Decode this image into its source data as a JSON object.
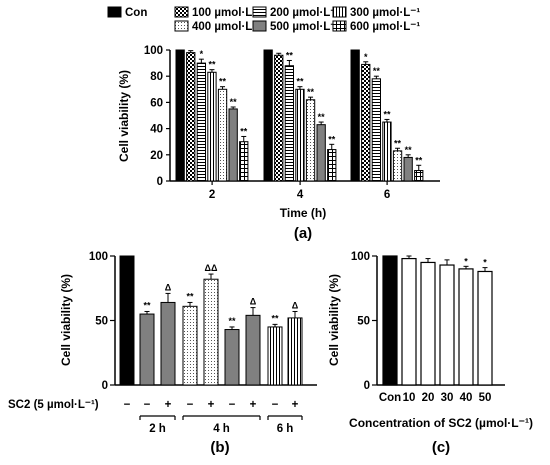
{
  "chart_data": [
    {
      "panel_label": "(a)",
      "type": "bar",
      "xlabel": "Time (h)",
      "ylabel": "Cell viability (%)",
      "ylim": [
        0,
        100
      ],
      "yticks": [
        0,
        20,
        40,
        60,
        80,
        100
      ],
      "categories": [
        "2",
        "4",
        "6"
      ],
      "legend_position": "top",
      "series": [
        {
          "name": "Con",
          "pattern": "solid-black",
          "values": [
            100,
            100,
            100
          ],
          "errors": [
            0,
            0,
            0
          ],
          "sig": [
            "",
            "",
            ""
          ]
        },
        {
          "name": "100 µmol·L⁻¹",
          "pattern": "checker",
          "values": [
            98,
            96,
            89
          ],
          "errors": [
            1.5,
            1.5,
            2
          ],
          "sig": [
            "",
            "",
            "*"
          ]
        },
        {
          "name": "200 µmol·L⁻¹",
          "pattern": "hlines",
          "values": [
            90,
            88,
            78
          ],
          "errors": [
            3,
            4,
            2
          ],
          "sig": [
            "*",
            "**",
            "**"
          ]
        },
        {
          "name": "300 µmol·L⁻¹",
          "pattern": "vlines",
          "values": [
            83,
            70,
            45
          ],
          "errors": [
            2,
            2,
            2
          ],
          "sig": [
            "**",
            "**",
            "**"
          ]
        },
        {
          "name": "400 µmol·L⁻¹",
          "pattern": "dots",
          "values": [
            70,
            62,
            23
          ],
          "errors": [
            2,
            2,
            2
          ],
          "sig": [
            "**",
            "**",
            "**"
          ]
        },
        {
          "name": "500 µmol·L⁻¹",
          "pattern": "solid-gray",
          "values": [
            55,
            43,
            18
          ],
          "errors": [
            1.5,
            2,
            2
          ],
          "sig": [
            "**",
            "**",
            "**"
          ]
        },
        {
          "name": "600 µmol·L⁻¹",
          "pattern": "grid",
          "values": [
            30,
            24,
            8
          ],
          "errors": [
            4,
            4,
            4
          ],
          "sig": [
            "**",
            "**",
            "**"
          ]
        }
      ]
    },
    {
      "panel_label": "(b)",
      "type": "bar",
      "ylabel": "Cell viability (%)",
      "ylim": [
        0,
        100
      ],
      "yticks": [
        0,
        50,
        100
      ],
      "row_label": "SC2 (5 µmol·L⁻¹)",
      "groups": [
        "2 h",
        "4 h",
        "6 h"
      ],
      "bars": [
        {
          "pattern": "solid-black",
          "value": 100,
          "error": 0,
          "sig": "",
          "sc2": "−"
        },
        {
          "pattern": "solid-gray",
          "value": 55,
          "error": 2,
          "sig": "**",
          "sc2": "−"
        },
        {
          "pattern": "solid-gray",
          "value": 64,
          "error": 7,
          "sig": "Δ",
          "sc2": "+"
        },
        {
          "pattern": "dots",
          "value": 61,
          "error": 3,
          "sig": "**",
          "sc2": "−"
        },
        {
          "pattern": "dots",
          "value": 82,
          "error": 4,
          "sig": "ΔΔ",
          "sc2": "+"
        },
        {
          "pattern": "solid-gray",
          "value": 43,
          "error": 2,
          "sig": "**",
          "sc2": "−"
        },
        {
          "pattern": "solid-gray",
          "value": 54,
          "error": 6,
          "sig": "Δ",
          "sc2": "+"
        },
        {
          "pattern": "vlines",
          "value": 45,
          "error": 2,
          "sig": "**",
          "sc2": "−"
        },
        {
          "pattern": "vlines",
          "value": 52,
          "error": 5,
          "sig": "Δ",
          "sc2": "+"
        }
      ]
    },
    {
      "panel_label": "(c)",
      "type": "bar",
      "xlabel": "Concentration of SC2 (µmol·L⁻¹)",
      "ylabel": "Cell viability (%)",
      "ylim": [
        0,
        100
      ],
      "yticks": [
        0,
        50,
        100
      ],
      "categories": [
        "Con",
        "10",
        "20",
        "30",
        "40",
        "50"
      ],
      "values": [
        100,
        98,
        95,
        93,
        90,
        88
      ],
      "errors": [
        0,
        2,
        3,
        4,
        2,
        3
      ],
      "sig": [
        "",
        "",
        "",
        "",
        "*",
        "*"
      ]
    }
  ]
}
